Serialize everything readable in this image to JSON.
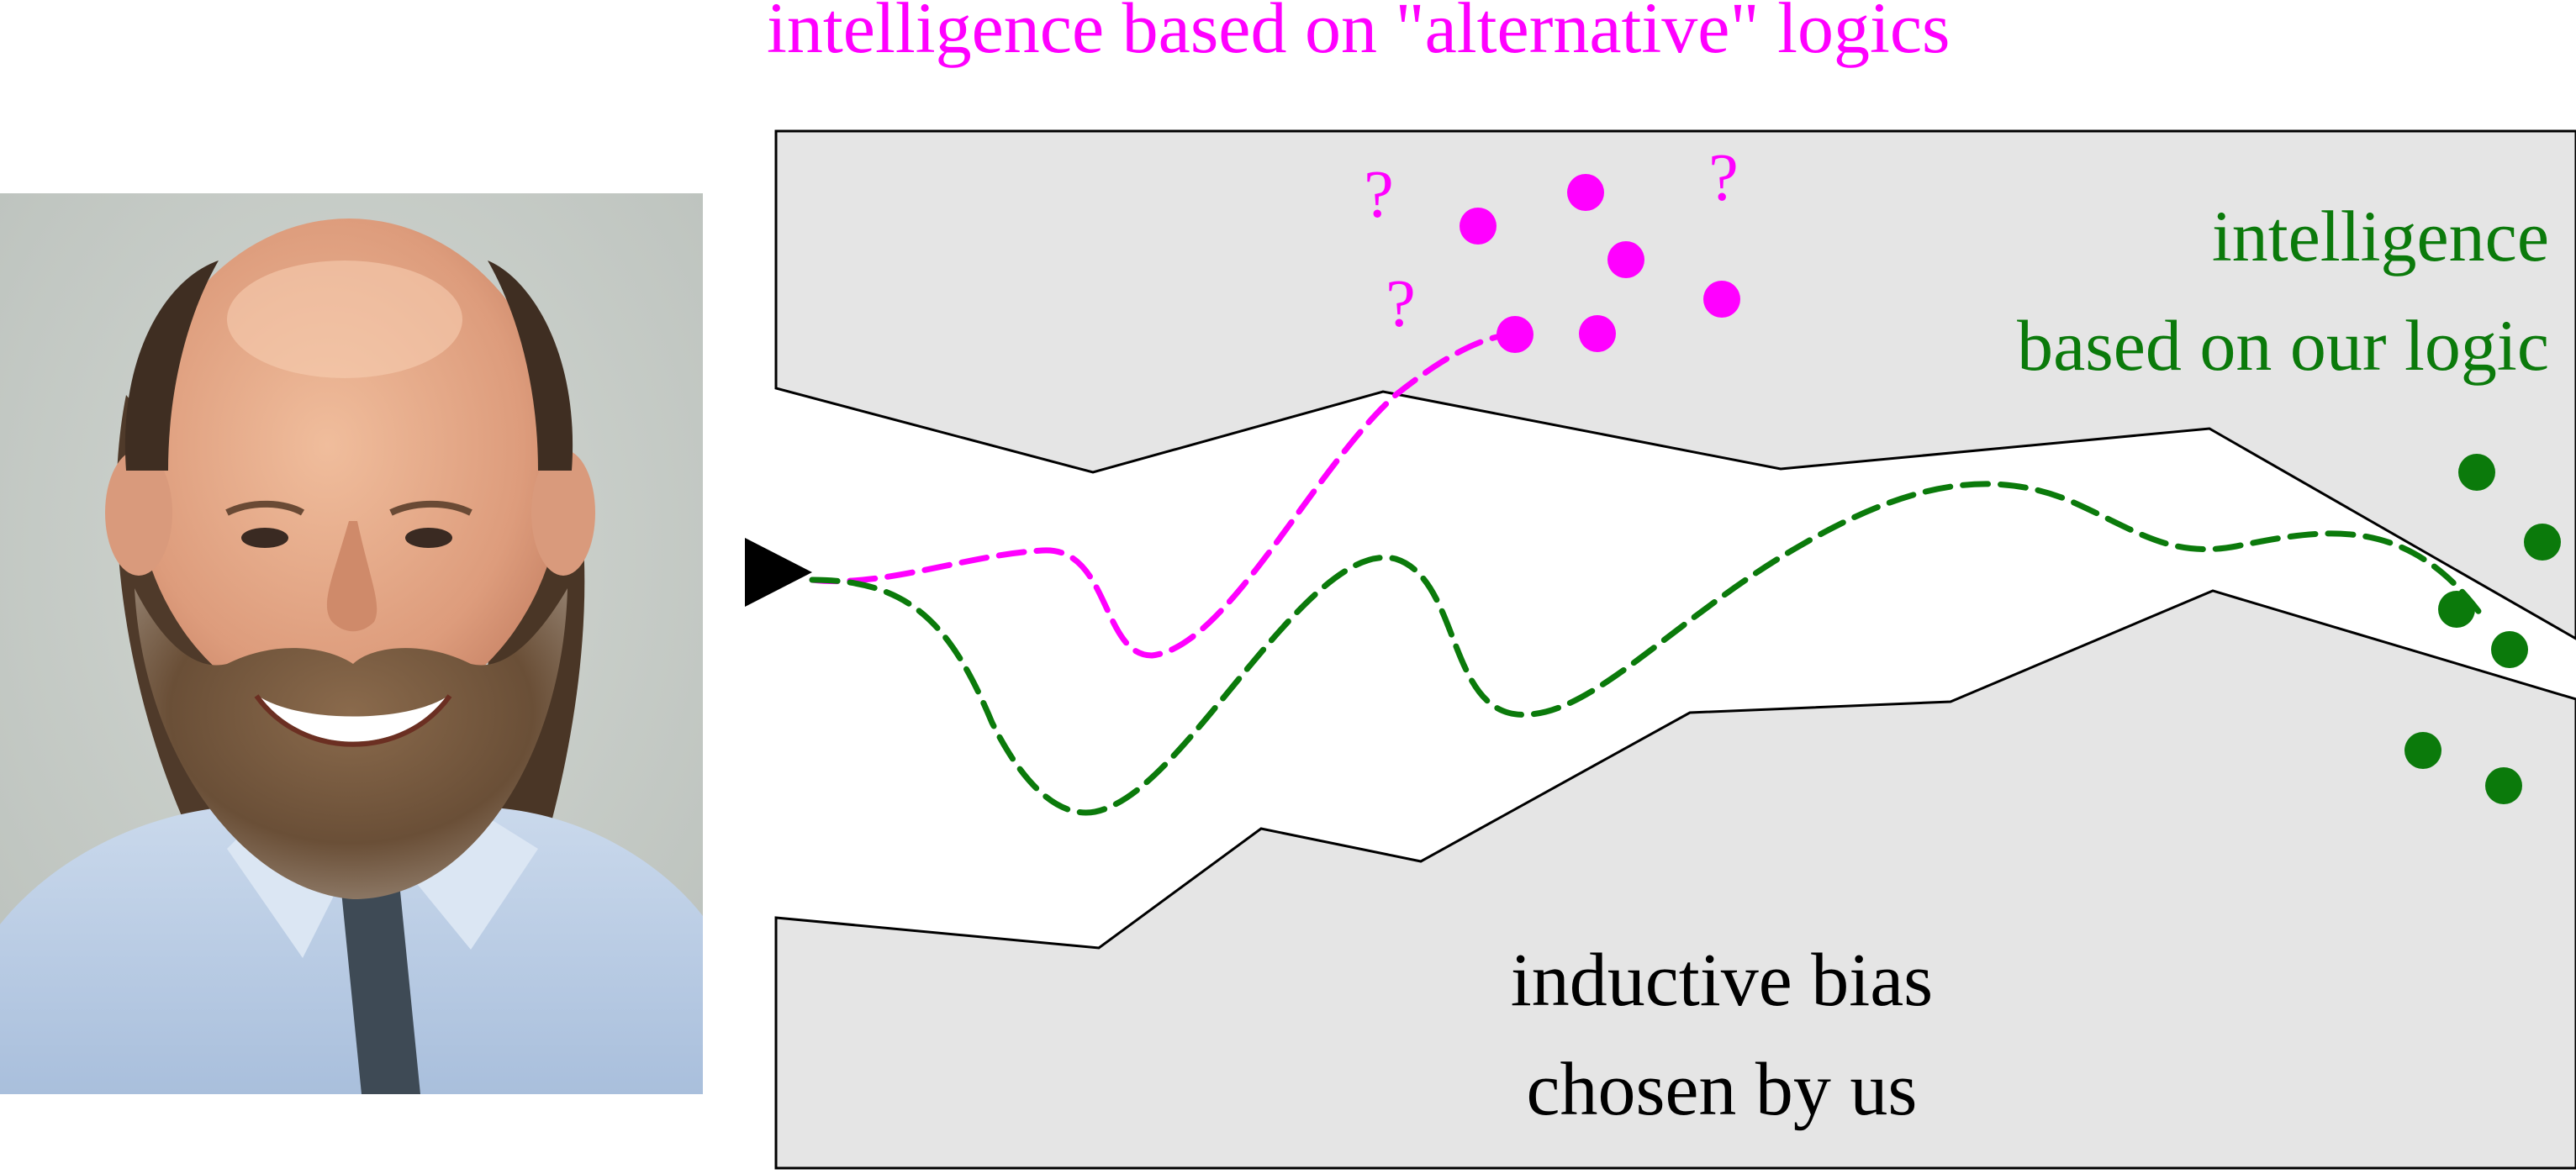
{
  "colors": {
    "magenta": "#ff00ff",
    "green": "#0b7a0b",
    "region_fill": "#e5e5e5",
    "outline": "#000000",
    "photo_background": "#c9cec9"
  },
  "photo": {
    "description_icon": "portrait-photo"
  },
  "diagram": {
    "top_label": "intelligence based on \"alternative\" logics",
    "right_label_line1": "intelligence",
    "right_label_line2": "based on our logic",
    "bottom_label_line1": "inductive bias",
    "bottom_label_line2": "chosen by us",
    "question_mark": "?",
    "start_marker_icon": "play-triangle-icon"
  }
}
